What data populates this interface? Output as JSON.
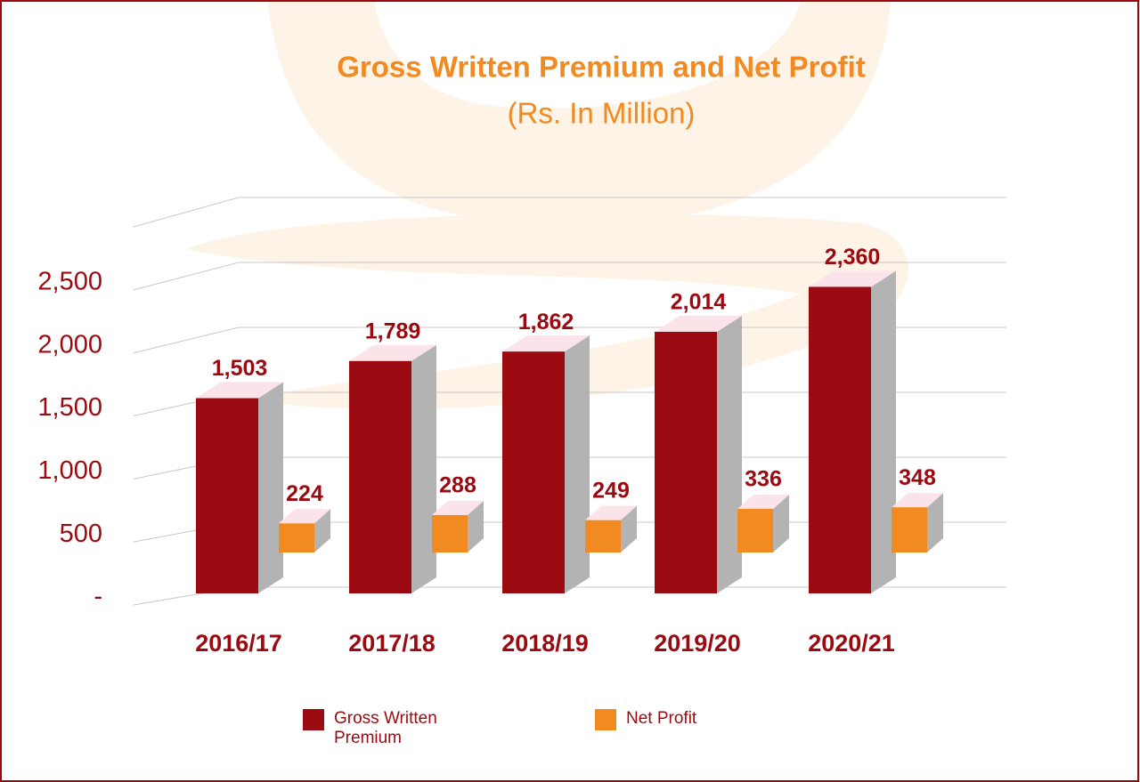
{
  "chart_data": {
    "type": "bar3d",
    "title": "Gross Written Premium and Net Profit",
    "subtitle": "(Rs. In Million)",
    "categories": [
      "2016/17",
      "2017/18",
      "2018/19",
      "2019/20",
      "2020/21"
    ],
    "series": [
      {
        "name": "Gross Written Premium",
        "color": "#9b0a10",
        "values": [
          1503,
          1789,
          1862,
          2014,
          2360
        ],
        "value_labels": [
          "1,503",
          "1,789",
          "1,862",
          "2,014",
          "2,360"
        ]
      },
      {
        "name": "Net Profit",
        "color": "#f28a22",
        "values": [
          224,
          288,
          249,
          336,
          348
        ]
      }
    ],
    "ylim": [
      0,
      3000
    ],
    "yticks": [
      {
        "value": 0,
        "label": "-"
      },
      500,
      {
        "value": 1000,
        "label": "1,000"
      },
      {
        "value": 1500,
        "label": "1,500"
      },
      {
        "value": 2000,
        "label": "2,000"
      },
      {
        "value": 2500,
        "label": "2,500"
      }
    ],
    "grid": true
  }
}
